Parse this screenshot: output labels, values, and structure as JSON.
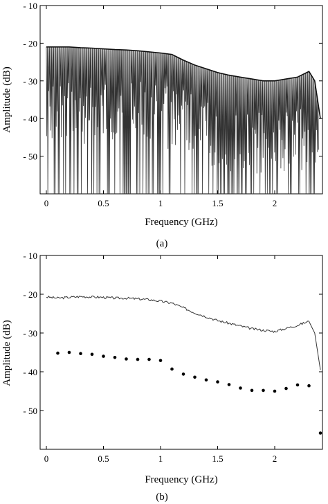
{
  "chart_data": [
    {
      "panel": "(a)",
      "type": "line",
      "xlabel": "Frequency (GHz)",
      "ylabel": "Amplitude (dB)",
      "xlim": [
        -0.05,
        2.4
      ],
      "ylim": [
        -60,
        -10
      ],
      "xticks": [
        0,
        0.5,
        1,
        1.5,
        2
      ],
      "xtick_labels": [
        "0",
        "0.5",
        "1",
        "1.5",
        "2"
      ],
      "yticks": [
        -10,
        -20,
        -30,
        -40,
        -50
      ],
      "ytick_labels": [
        "- 10",
        "- 20",
        "- 30",
        "- 40",
        "- 50"
      ],
      "series": [
        {
          "color": "#333333",
          "envelope_x": [
            0.0,
            0.1,
            0.2,
            0.3,
            0.4,
            0.5,
            0.6,
            0.7,
            0.8,
            0.9,
            1.0,
            1.1,
            1.2,
            1.3,
            1.4,
            1.5,
            1.6,
            1.7,
            1.8,
            1.9,
            2.0,
            2.1,
            2.2,
            2.3,
            2.35,
            2.4
          ],
          "envelope_y": [
            -21,
            -21,
            -21,
            -21.2,
            -21.3,
            -21.5,
            -21.7,
            -21.8,
            -22,
            -22.3,
            -22.6,
            -23,
            -24.5,
            -25.8,
            -26.8,
            -27.8,
            -28.5,
            -29,
            -29.5,
            -30,
            -30,
            -29.5,
            -29,
            -27.5,
            -30,
            -40
          ],
          "valley_y": -60
        }
      ]
    },
    {
      "panel": "(b)",
      "type": "scatter",
      "xlabel": "Frequency (GHz)",
      "ylabel": "Amplitude (dB)",
      "xlim": [
        -0.05,
        2.4
      ],
      "ylim": [
        -60,
        -10
      ],
      "xticks": [
        0,
        0.5,
        1,
        1.5,
        2
      ],
      "xtick_labels": [
        "0",
        "0.5",
        "1",
        "1.5",
        "2"
      ],
      "yticks": [
        -10,
        -20,
        -30,
        -40,
        -50
      ],
      "ytick_labels": [
        "- 10",
        "- 20",
        "- 30",
        "- 40",
        "- 50"
      ],
      "series": [
        {
          "kind": "line",
          "color": "#333333",
          "x": [
            0.0,
            0.1,
            0.2,
            0.3,
            0.4,
            0.5,
            0.6,
            0.7,
            0.8,
            0.9,
            1.0,
            1.1,
            1.2,
            1.3,
            1.4,
            1.5,
            1.6,
            1.7,
            1.8,
            1.9,
            2.0,
            2.1,
            2.2,
            2.3,
            2.35,
            2.4
          ],
          "y": [
            -20.7,
            -21,
            -20.8,
            -20.6,
            -20.7,
            -20.8,
            -21,
            -21,
            -21.2,
            -21.4,
            -21.8,
            -22.3,
            -23.5,
            -24.8,
            -25.8,
            -26.8,
            -27.5,
            -28.2,
            -28.9,
            -29.3,
            -29.6,
            -28.8,
            -28,
            -27,
            -30,
            -39.5
          ]
        },
        {
          "kind": "points",
          "color": "#000000",
          "x": [
            0.1,
            0.2,
            0.3,
            0.4,
            0.5,
            0.6,
            0.7,
            0.8,
            0.9,
            1.0,
            1.1,
            1.2,
            1.3,
            1.4,
            1.5,
            1.6,
            1.7,
            1.8,
            1.9,
            2.0,
            2.1,
            2.2,
            2.3,
            2.4
          ],
          "y": [
            -35.2,
            -35,
            -35.3,
            -35.5,
            -36,
            -36.3,
            -36.7,
            -36.8,
            -36.8,
            -37.1,
            -39.3,
            -40.6,
            -41.4,
            -42.1,
            -42.6,
            -43.3,
            -44.2,
            -44.8,
            -44.8,
            -45,
            -44.3,
            -43.4,
            -43.6,
            -55.8
          ]
        }
      ]
    }
  ],
  "captions": [
    "(a)",
    "(b)"
  ]
}
